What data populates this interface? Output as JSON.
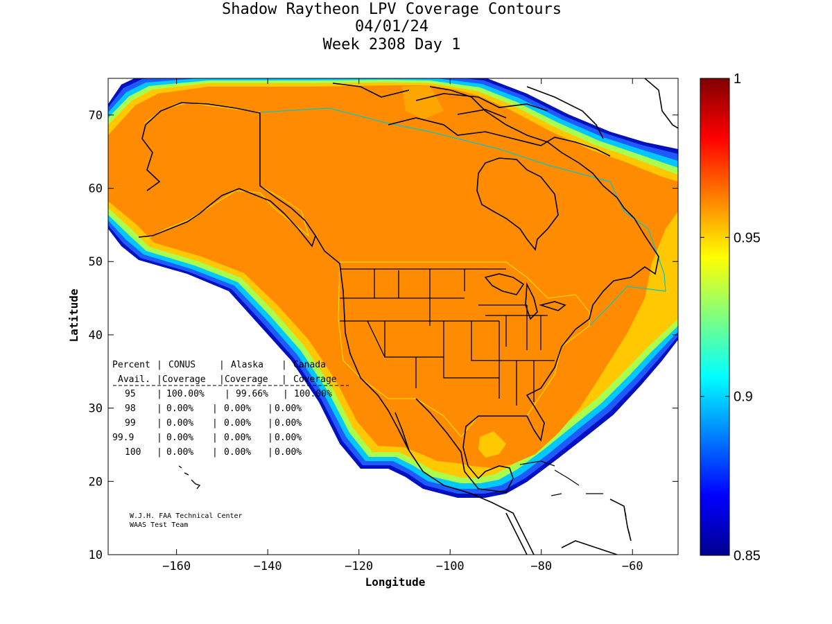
{
  "header": {
    "title_line1": "Shadow Raytheon LPV Coverage Contours",
    "title_line2": "04/01/24",
    "title_line3": "Week 2308 Day 1"
  },
  "axes": {
    "xlabel": "Longitude",
    "ylabel": "Latitude",
    "xlim": [
      -175,
      -50
    ],
    "ylim": [
      10,
      75
    ],
    "xticks": [
      -160,
      -140,
      -120,
      -100,
      -80,
      -60
    ],
    "yticks": [
      10,
      20,
      30,
      40,
      50,
      60,
      70
    ]
  },
  "colorbar": {
    "range": [
      0.85,
      1.0
    ],
    "ticks": [
      {
        "value": 1.0,
        "label": "1"
      },
      {
        "value": 0.95,
        "label": "0.95"
      },
      {
        "value": 0.9,
        "label": "0.9"
      },
      {
        "value": 0.85,
        "label": "0.85"
      }
    ],
    "colormap": "jet"
  },
  "table": {
    "header_row1": [
      "Percent",
      "CONUS",
      "Alaska",
      "Canada"
    ],
    "header_row2": [
      "Avail.",
      "Coverage",
      "Coverage",
      "Coverage"
    ],
    "rows": [
      [
        "95",
        "100.00%",
        "99.66%",
        "100.00%"
      ],
      [
        "98",
        "0.00%",
        "0.00%",
        "0.00%"
      ],
      [
        "99",
        "0.00%",
        "0.00%",
        "0.00%"
      ],
      [
        "99.9",
        "0.00%",
        "0.00%",
        "0.00%"
      ],
      [
        "100",
        "0.00%",
        "0.00%",
        "0.00%"
      ]
    ]
  },
  "credit": {
    "line1": "W.J.H. FAA Technical Center",
    "line2": "WAAS Test Team"
  },
  "colors": {
    "coverage_fill": "#ff8c00",
    "region_outline": "#ffe600",
    "border_lines": "#00c8c8",
    "coastline": "#000000"
  }
}
